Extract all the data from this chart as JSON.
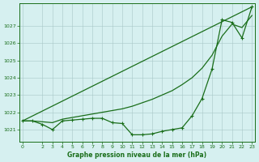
{
  "x_values": [
    0,
    1,
    2,
    3,
    4,
    5,
    6,
    7,
    8,
    9,
    10,
    11,
    12,
    13,
    14,
    15,
    16,
    17,
    18,
    19,
    20,
    21,
    22,
    23
  ],
  "line_main": [
    1021.5,
    1021.5,
    1021.3,
    1021.0,
    1021.5,
    1021.55,
    1021.6,
    1021.65,
    1021.65,
    1021.4,
    1021.35,
    1020.7,
    1020.7,
    1020.75,
    1020.9,
    1021.0,
    1021.1,
    1021.8,
    1022.8,
    1024.5,
    1027.35,
    1027.2,
    1026.3,
    1028.1
  ],
  "line_smooth": [
    1021.5,
    1021.5,
    1021.45,
    1021.4,
    1021.6,
    1021.7,
    1021.8,
    1021.9,
    1022.0,
    1022.1,
    1022.2,
    1022.35,
    1022.55,
    1022.75,
    1023.0,
    1023.25,
    1023.6,
    1024.0,
    1024.55,
    1025.3,
    1026.4,
    1027.1,
    1026.9,
    1027.6
  ],
  "trend_x": [
    0,
    23
  ],
  "trend_y": [
    1021.5,
    1028.1
  ],
  "line_color": "#1a6e1a",
  "bg_color": "#d6f0f0",
  "grid_color": "#a8c8c8",
  "xlabel": "Graphe pression niveau de la mer (hPa)",
  "ylim": [
    1020.3,
    1028.3
  ],
  "xlim": [
    -0.3,
    23.3
  ],
  "yticks": [
    1021,
    1022,
    1023,
    1024,
    1025,
    1026,
    1027
  ],
  "xticks": [
    0,
    2,
    3,
    4,
    5,
    6,
    7,
    8,
    9,
    10,
    11,
    12,
    13,
    14,
    15,
    16,
    17,
    18,
    19,
    20,
    21,
    22,
    23
  ]
}
